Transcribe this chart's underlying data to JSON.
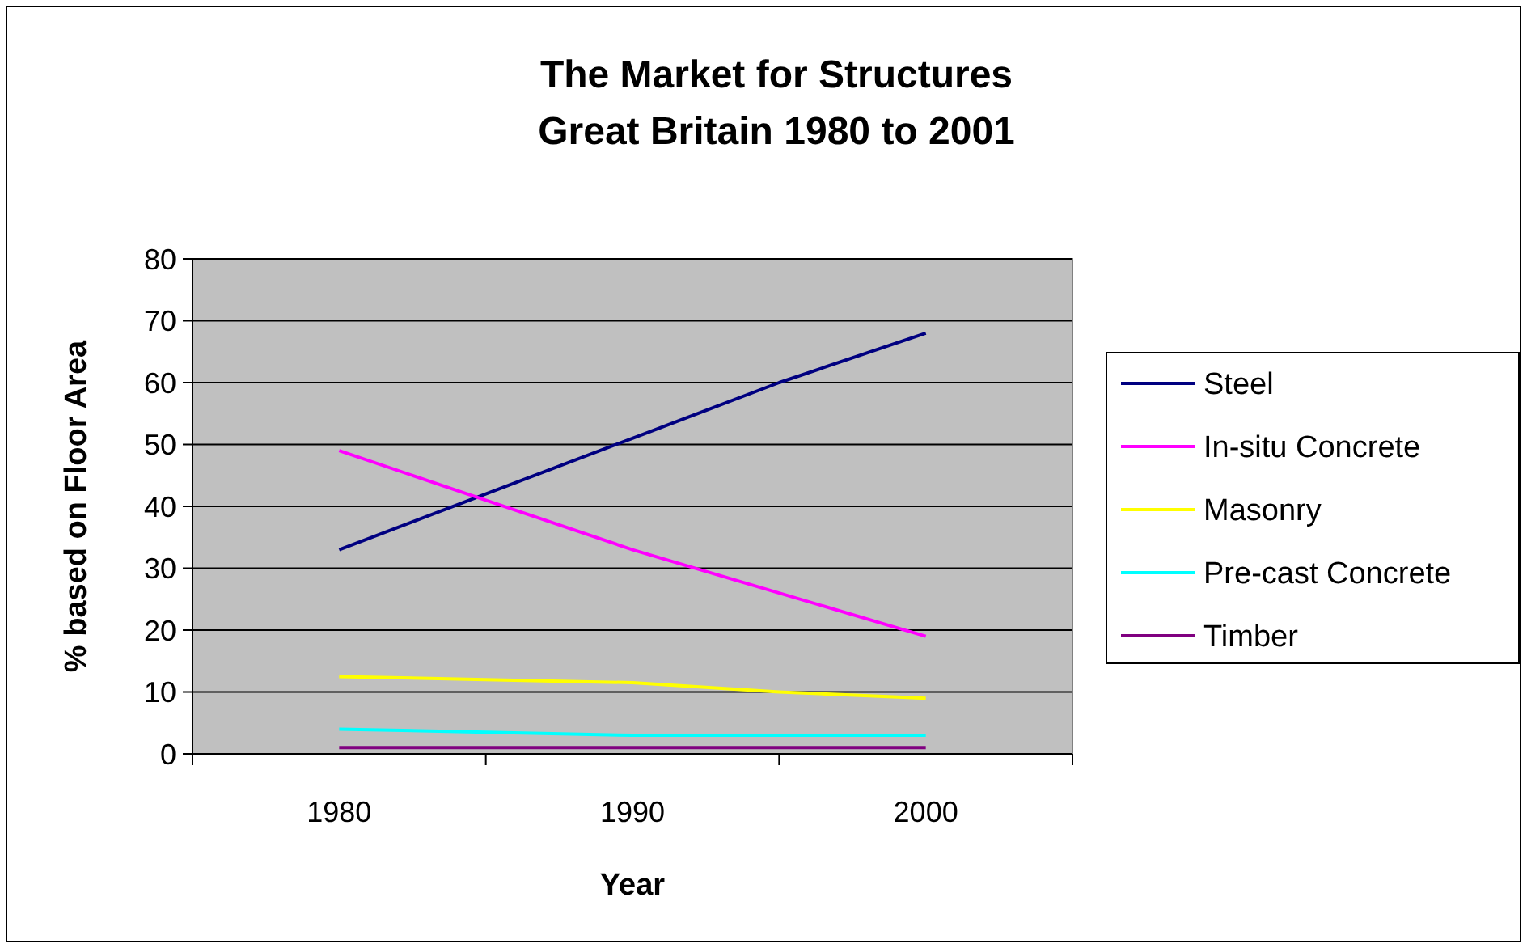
{
  "chart_data": {
    "type": "line",
    "title": "The Market for Structures\nGreat Britain 1980 to 2001",
    "xlabel": "Year",
    "ylabel": "% based on Floor Area",
    "x": [
      1980,
      1985,
      1990,
      1995,
      2000
    ],
    "series": [
      {
        "name": "Steel",
        "color": "#000080",
        "values": [
          33,
          42,
          51,
          60,
          68
        ]
      },
      {
        "name": "In-situ Concrete",
        "color": "#ff00ff",
        "values": [
          49,
          41,
          33,
          26,
          19
        ]
      },
      {
        "name": "Masonry",
        "color": "#ffff00",
        "values": [
          12.5,
          12,
          11.5,
          10,
          9
        ]
      },
      {
        "name": "Pre-cast Concrete",
        "color": "#00ffff",
        "values": [
          4,
          3.5,
          3,
          3,
          3
        ]
      },
      {
        "name": "Timber",
        "color": "#800080",
        "values": [
          1,
          1,
          1,
          1,
          1
        ]
      }
    ],
    "xlim": [
      1975,
      2005
    ],
    "xticks": [
      {
        "value": 1975,
        "label": null
      },
      1980,
      {
        "value": 1985,
        "label": null
      },
      1990,
      {
        "value": 1995,
        "label": null
      },
      2000,
      {
        "value": 2005,
        "label": null
      }
    ],
    "ylim": [
      0,
      80
    ],
    "yticks": [
      0,
      10,
      20,
      30,
      40,
      50,
      60,
      70,
      80
    ],
    "grid": "y",
    "legend": "right",
    "marker": "none",
    "line_style": "solid"
  }
}
